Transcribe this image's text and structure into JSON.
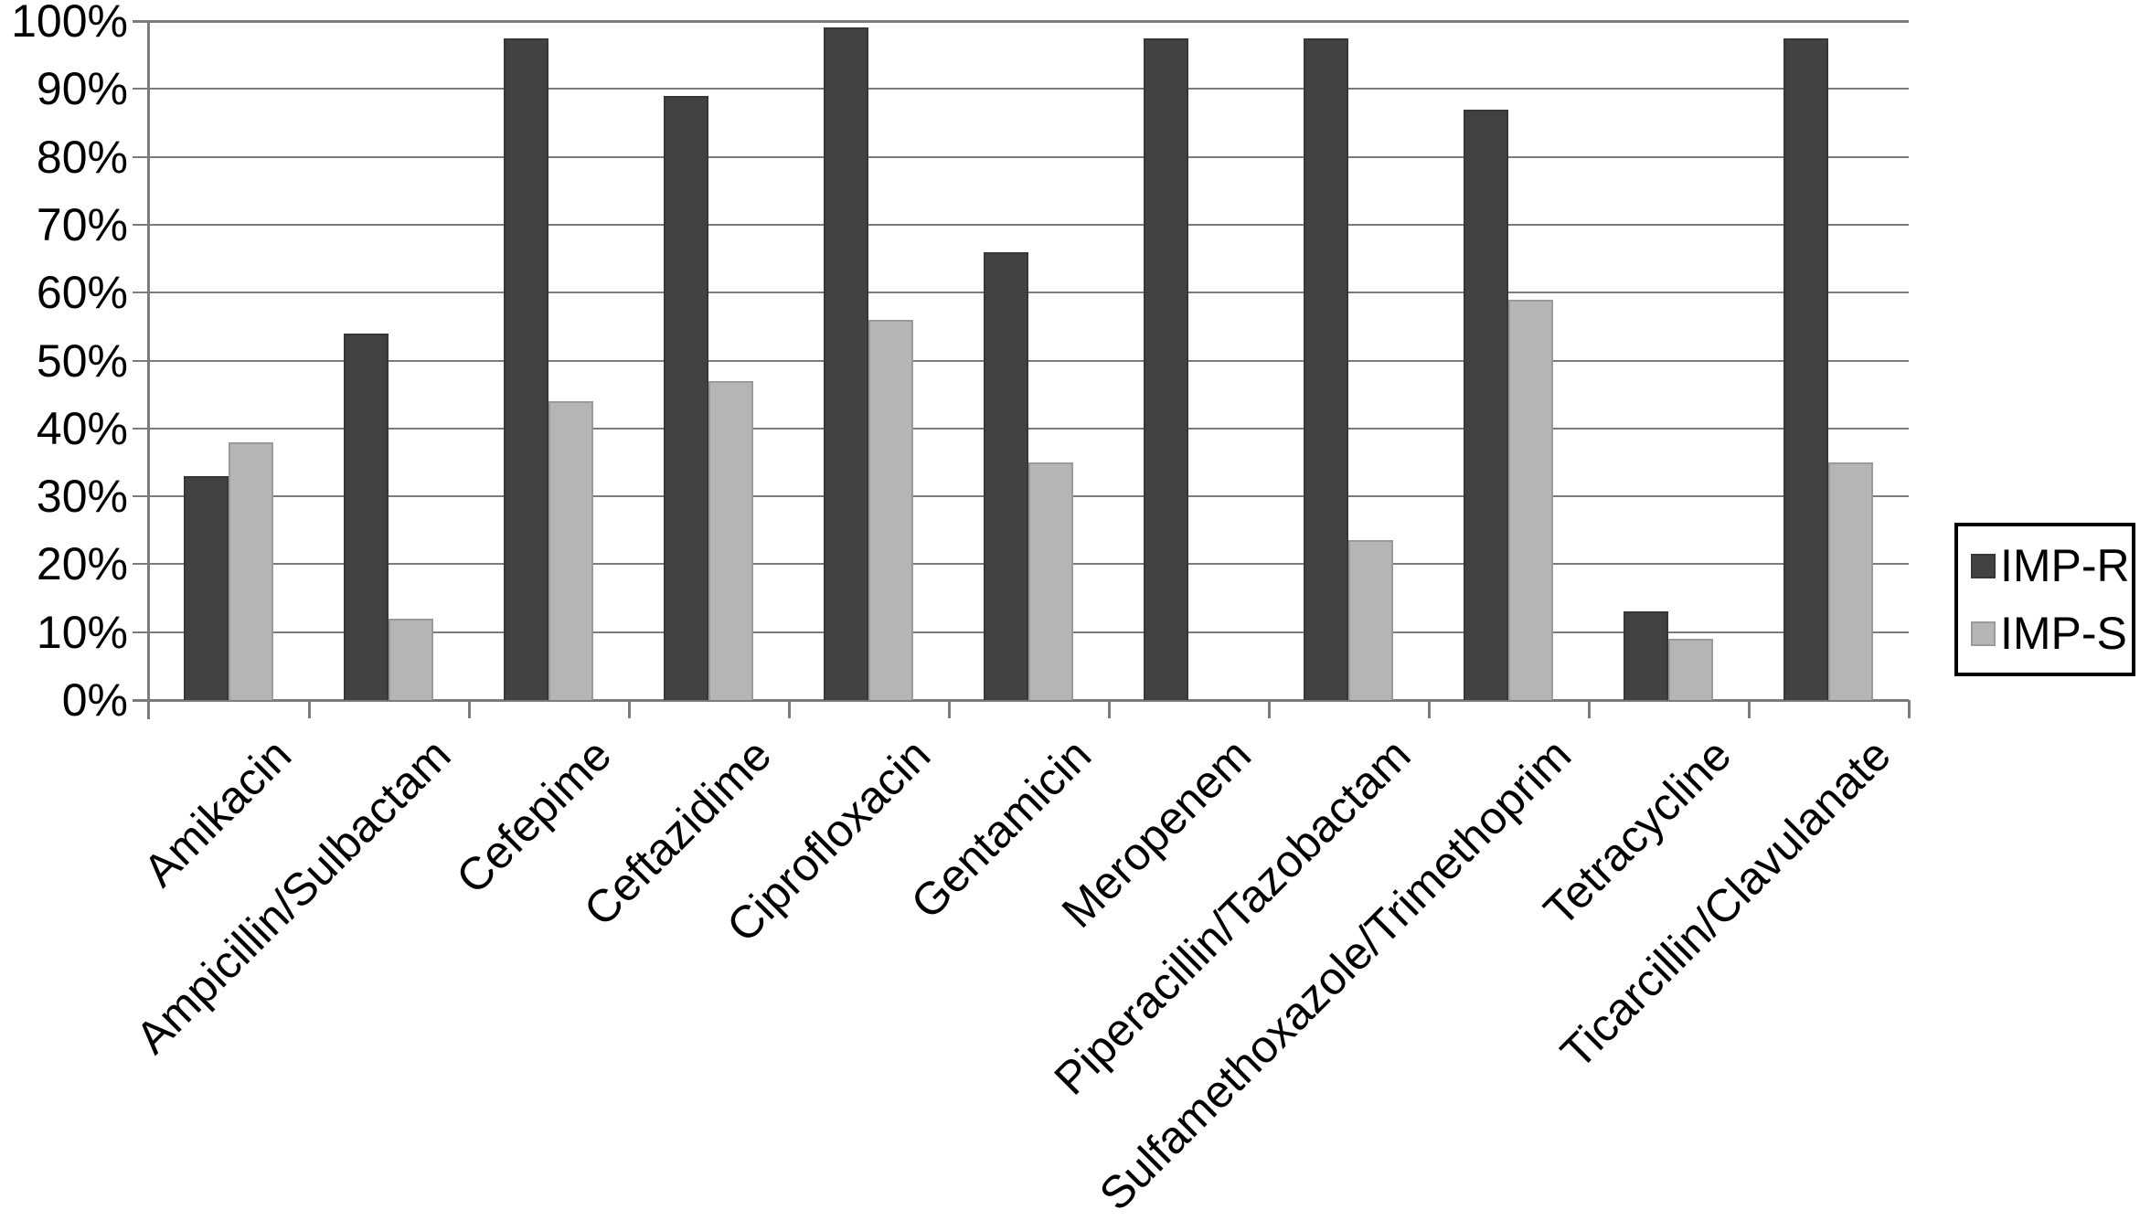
{
  "chart_data": {
    "type": "bar",
    "title": "",
    "xlabel": "",
    "ylabel": "",
    "ylim": [
      0,
      100
    ],
    "grid": true,
    "legend_position": "right",
    "yticks": [
      "0%",
      "10%",
      "20%",
      "30%",
      "40%",
      "50%",
      "60%",
      "70%",
      "80%",
      "90%",
      "100%"
    ],
    "categories": [
      "Amikacin",
      "Ampicillin/Sulbactam",
      "Cefepime",
      "Ceftazidime",
      "Ciprofloxacin",
      "Gentamicin",
      "Meropenem",
      "Piperacillin/Tazobactam",
      "Sulfamethoxazole/Trimethoprim",
      "Tetracycline",
      "Ticarcillin/Clavulanate"
    ],
    "series": [
      {
        "name": "IMP-R",
        "color": "#424242",
        "border_color": "#373737",
        "values": [
          33,
          54,
          97.5,
          89,
          99,
          66,
          97.5,
          97.5,
          87,
          13,
          97.5
        ]
      },
      {
        "name": "IMP-S",
        "color": "#b5b5b5",
        "border_color": "#9a9a9a",
        "values": [
          38,
          12,
          44,
          47,
          56,
          35,
          0,
          23.5,
          59,
          9,
          35
        ]
      }
    ]
  },
  "legend": {
    "items": [
      {
        "label": "IMP-R"
      },
      {
        "label": "IMP-S"
      }
    ]
  },
  "colors": {
    "background": "#ffffff",
    "gridline": "#7b7b7b",
    "axis": "#7b7b7b",
    "text": "#000000",
    "legend_border": "#000000"
  }
}
